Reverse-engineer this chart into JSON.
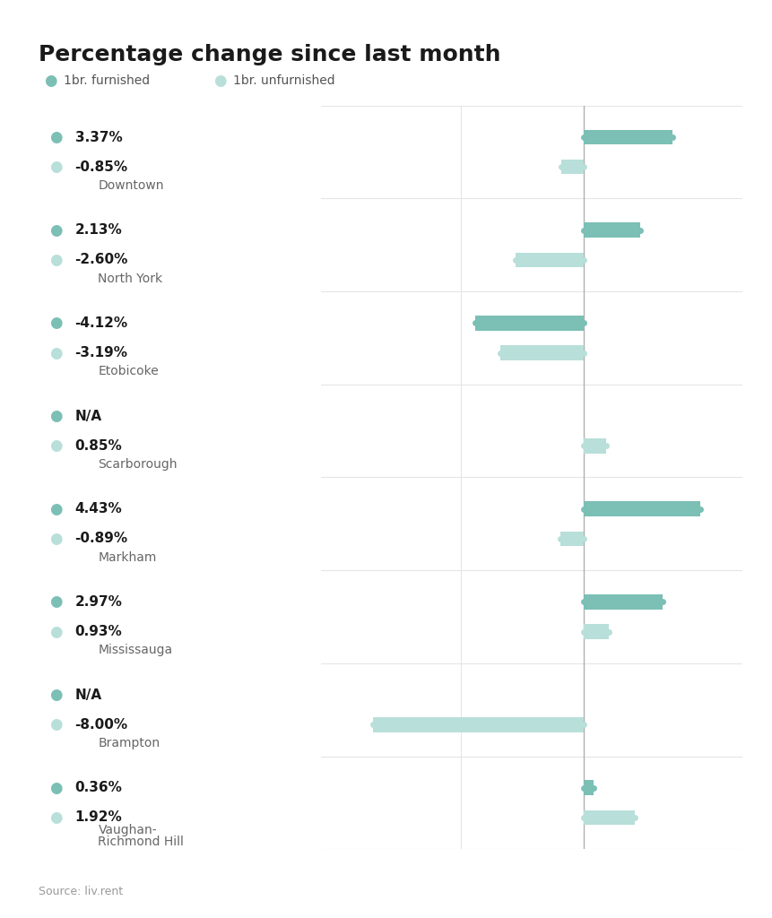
{
  "title": "Percentage change since last month",
  "legend": [
    "1br. furnished",
    "1br. unfurnished"
  ],
  "source": "Source: liv.rent",
  "cities": [
    {
      "name": "Downtown",
      "furnished": 3.37,
      "unfurnished": -0.85,
      "furnished_label": "3.37%",
      "unfurnished_label": "-0.85%"
    },
    {
      "name": "North York",
      "furnished": 2.13,
      "unfurnished": -2.6,
      "furnished_label": "2.13%",
      "unfurnished_label": "-2.60%"
    },
    {
      "name": "Etobicoke",
      "furnished": -4.12,
      "unfurnished": -3.19,
      "furnished_label": "-4.12%",
      "unfurnished_label": "-3.19%"
    },
    {
      "name": "Scarborough",
      "furnished": null,
      "unfurnished": 0.85,
      "furnished_label": "N/A",
      "unfurnished_label": "0.85%"
    },
    {
      "name": "Markham",
      "furnished": 4.43,
      "unfurnished": -0.89,
      "furnished_label": "4.43%",
      "unfurnished_label": "-0.89%"
    },
    {
      "name": "Mississauga",
      "furnished": 2.97,
      "unfurnished": 0.93,
      "furnished_label": "2.97%",
      "unfurnished_label": "0.93%"
    },
    {
      "name": "Brampton",
      "furnished": null,
      "unfurnished": -8.0,
      "furnished_label": "N/A",
      "unfurnished_label": "-8.00%"
    },
    {
      "name": "Vaughan-\nRichmond Hill",
      "furnished": 0.36,
      "unfurnished": 1.92,
      "furnished_label": "0.36%",
      "unfurnished_label": "1.92%"
    }
  ],
  "color_furnished": "#7bbfb5",
  "color_unfurnished": "#b8dfd9",
  "color_dot_furnished": "#7bbfb5",
  "color_dot_unfurnished": "#b8dfd9",
  "color_grid": "#e5e5e5",
  "color_vline": "#b0b0b0",
  "color_background": "#ffffff",
  "xlim": [
    -10,
    6
  ],
  "bar_height": 0.16
}
